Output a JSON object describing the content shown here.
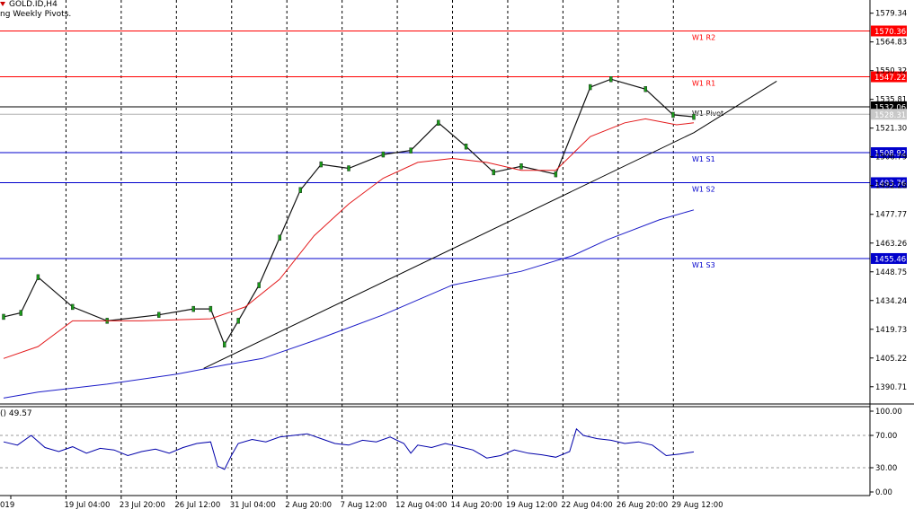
{
  "header": {
    "symbol": "GOLD.ID,H4",
    "indicator": "ng Weekly Pivots."
  },
  "oscillator": {
    "label": "() 49.57",
    "scale_labels": [
      "100.00",
      "70.00",
      "30.00",
      "0.00"
    ],
    "scale_values": [
      100,
      70,
      30,
      0
    ],
    "dashed_levels": [
      70,
      30
    ]
  },
  "price_axis": {
    "ticks": [
      "1579.34",
      "1564.83",
      "1550.32",
      "1535.81",
      "1521.30",
      "1506.79",
      "1492.28",
      "1477.77",
      "1463.26",
      "1448.75",
      "1434.24",
      "1419.73",
      "1405.22",
      "1390.71"
    ],
    "tick_values": [
      1579.34,
      1564.83,
      1550.32,
      1535.81,
      1521.3,
      1506.79,
      1492.28,
      1477.77,
      1463.26,
      1448.75,
      1434.24,
      1419.73,
      1405.22,
      1390.71
    ],
    "current_price_label": "1528.31",
    "current_price": 1528.31
  },
  "time_axis": {
    "labels": [
      "019",
      "19 Jul 04:00",
      "23 Jul 20:00",
      "26 Jul 12:00",
      "31 Jul 04:00",
      "2 Aug 20:00",
      "7 Aug 12:00",
      "12 Aug 04:00",
      "14 Aug 20:00",
      "19 Aug 12:00",
      "22 Aug 04:00",
      "26 Aug 20:00",
      "29 Aug 12:00"
    ],
    "label_bars": [
      0,
      16,
      32,
      48,
      64,
      80,
      96,
      112,
      128,
      144,
      160,
      176,
      192
    ]
  },
  "pivots": [
    {
      "name": "W1 R2",
      "value": 1570.36,
      "label": "1570.36",
      "color": "#ff0000"
    },
    {
      "name": "W1 R1",
      "value": 1547.22,
      "label": "1547.22",
      "color": "#ff0000"
    },
    {
      "name": "W1 Pivot",
      "value": 1532.06,
      "label": "1532.06",
      "color": "#000000"
    },
    {
      "name": "W1 S1",
      "value": 1508.92,
      "label": "1508.92",
      "color": "#0000cc"
    },
    {
      "name": "W1 S2",
      "value": 1493.76,
      "label": "1493.76",
      "color": "#0000cc"
    },
    {
      "name": "W1 S3",
      "value": 1455.46,
      "label": "1455.46",
      "color": "#0000cc"
    }
  ],
  "chart_data": {
    "type": "line",
    "title": "GOLD.ID,H4",
    "ylim": [
      1382.0,
      1586.0
    ],
    "grid": "vertical-dashed",
    "bar_count": 203,
    "series": [
      {
        "name": "",
        "color": "#111111",
        "x": [
          0,
          5,
          10,
          20,
          30,
          45,
          55,
          60,
          64,
          68,
          74,
          80,
          86,
          92,
          100,
          110,
          118,
          126,
          134,
          142,
          150,
          160,
          170,
          176,
          186,
          194,
          200
        ],
        "y": [
          1426,
          1428,
          1446,
          1431,
          1424,
          1427,
          1430,
          1430,
          1412,
          1424,
          1442,
          1466,
          1490,
          1503,
          1501,
          1508,
          1510,
          1524,
          1512,
          1499,
          1502,
          1498,
          1542,
          1546,
          1541,
          1528,
          1527
        ]
      },
      {
        "name": "",
        "color": "#e31a1c",
        "x": [
          0,
          10,
          20,
          40,
          60,
          70,
          80,
          90,
          100,
          110,
          120,
          130,
          140,
          150,
          160,
          170,
          180,
          186,
          195,
          200
        ],
        "y": [
          1405,
          1411,
          1424,
          1424,
          1425,
          1431,
          1445,
          1467,
          1483,
          1496,
          1504,
          1506,
          1504,
          1500,
          1500,
          1517,
          1524,
          1526,
          1523,
          1524
        ]
      },
      {
        "name": "",
        "color": "#1c1cc8",
        "x": [
          0,
          10,
          30,
          50,
          65,
          75,
          90,
          110,
          130,
          150,
          165,
          175,
          190,
          200
        ],
        "y": [
          1385,
          1388,
          1392,
          1397,
          1402,
          1405,
          1414,
          1427,
          1442,
          1449,
          1457,
          1465,
          1475,
          1480
        ]
      },
      {
        "name": "",
        "color": "#000000",
        "x": [
          58,
          200,
          224
        ],
        "y": [
          1400,
          1519,
          1545
        ]
      }
    ],
    "oscillator_series": {
      "name": "",
      "color": "#0000aa",
      "x": [
        0,
        4,
        8,
        12,
        16,
        20,
        24,
        28,
        32,
        36,
        40,
        44,
        48,
        52,
        56,
        60,
        62,
        64,
        66,
        68,
        72,
        76,
        80,
        84,
        88,
        92,
        96,
        100,
        104,
        108,
        112,
        116,
        118,
        120,
        124,
        128,
        132,
        136,
        140,
        144,
        148,
        152,
        156,
        160,
        164,
        166,
        168,
        172,
        176,
        180,
        184,
        188,
        192,
        196,
        200
      ],
      "y": [
        62,
        58,
        70,
        55,
        50,
        56,
        48,
        54,
        52,
        45,
        50,
        53,
        48,
        55,
        60,
        62,
        32,
        28,
        45,
        60,
        65,
        62,
        68,
        70,
        72,
        66,
        60,
        58,
        64,
        62,
        68,
        60,
        48,
        58,
        55,
        60,
        56,
        52,
        42,
        45,
        52,
        48,
        46,
        43,
        50,
        78,
        70,
        66,
        64,
        60,
        62,
        58,
        45,
        47,
        49.57
      ]
    }
  }
}
